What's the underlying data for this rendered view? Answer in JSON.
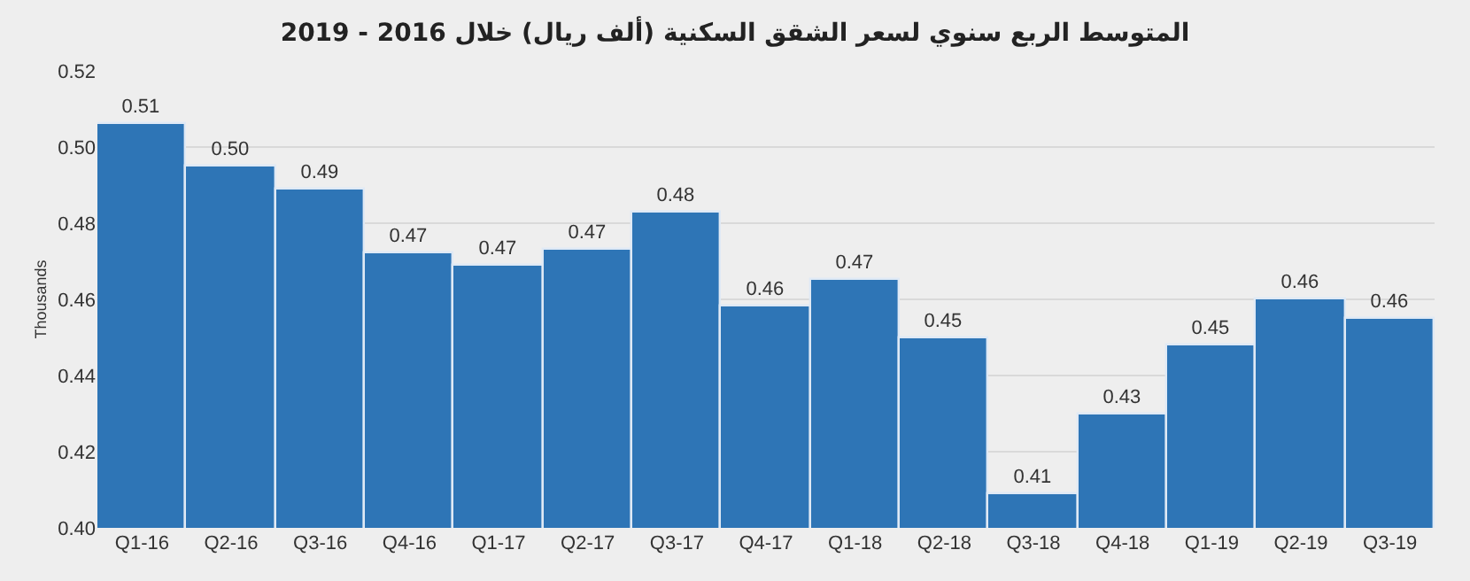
{
  "chart_data": {
    "type": "bar",
    "title": "المتوسط الربع سنوي لسعر الشقق السكنية (ألف ريال) خلال 2016 - 2019",
    "ylabel": "Thousands",
    "categories": [
      "Q1-16",
      "Q2-16",
      "Q3-16",
      "Q4-16",
      "Q1-17",
      "Q2-17",
      "Q3-17",
      "Q4-17",
      "Q1-18",
      "Q2-18",
      "Q3-18",
      "Q4-18",
      "Q1-19",
      "Q2-19",
      "Q3-19"
    ],
    "values": [
      0.506,
      0.495,
      0.489,
      0.472,
      0.469,
      0.473,
      0.483,
      0.458,
      0.465,
      0.45,
      0.409,
      0.43,
      0.448,
      0.46,
      0.455
    ],
    "value_labels": [
      "0.51",
      "0.50",
      "0.49",
      "0.47",
      "0.47",
      "0.47",
      "0.48",
      "0.46",
      "0.47",
      "0.45",
      "0.41",
      "0.43",
      "0.45",
      "0.46",
      "0.46"
    ],
    "color": "#2e75b6",
    "ylim": [
      0.4,
      0.52
    ],
    "yticks": [
      {
        "value": 0.4,
        "label": "0.40"
      },
      {
        "value": 0.42,
        "label": "0.42"
      },
      {
        "value": 0.44,
        "label": "0.44"
      },
      {
        "value": 0.46,
        "label": "0.46"
      },
      {
        "value": 0.48,
        "label": "0.48"
      },
      {
        "value": 0.5,
        "label": "0.50"
      },
      {
        "value": 0.52,
        "label": "0.52"
      }
    ],
    "grid": "y",
    "legend": false
  }
}
